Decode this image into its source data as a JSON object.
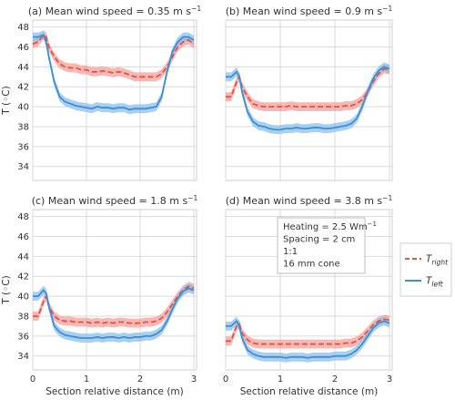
{
  "chart_data": [
    {
      "type": "line",
      "title": "(a) Mean wind speed = 0.35 m s",
      "title_sup": "−1",
      "xlabel": "",
      "ylabel": "T (◦C)",
      "xlim": [
        0,
        3.05
      ],
      "ylim": [
        32.6,
        48.7
      ],
      "yticks": [
        "34",
        "36",
        "38",
        "40",
        "42",
        "44",
        "46",
        "48"
      ],
      "xticks": [],
      "series": [
        {
          "key": "right",
          "x": [
            0,
            0.1,
            0.2,
            0.25,
            0.3,
            0.4,
            0.5,
            0.6,
            0.7,
            0.8,
            0.9,
            1.0,
            1.1,
            1.2,
            1.3,
            1.4,
            1.5,
            1.6,
            1.7,
            1.8,
            1.9,
            2.0,
            2.1,
            2.2,
            2.3,
            2.4,
            2.5,
            2.6,
            2.7,
            2.8,
            2.9,
            3.0
          ],
          "y": [
            46.3,
            46.5,
            47.2,
            47.0,
            46.0,
            45.0,
            44.3,
            44.0,
            43.9,
            43.9,
            43.7,
            43.7,
            43.5,
            43.5,
            43.6,
            43.5,
            43.4,
            43.5,
            43.4,
            43.2,
            43.0,
            43.0,
            43.0,
            43.0,
            43.0,
            43.3,
            44.0,
            45.0,
            46.0,
            46.5,
            46.7,
            46.3
          ],
          "band": 0.45
        },
        {
          "key": "left",
          "x": [
            0,
            0.1,
            0.2,
            0.25,
            0.3,
            0.4,
            0.5,
            0.6,
            0.7,
            0.8,
            0.9,
            1.0,
            1.1,
            1.2,
            1.3,
            1.4,
            1.5,
            1.6,
            1.7,
            1.8,
            1.9,
            2.0,
            2.1,
            2.2,
            2.3,
            2.4,
            2.5,
            2.6,
            2.7,
            2.8,
            2.9,
            3.0
          ],
          "y": [
            47.0,
            47.0,
            47.2,
            46.5,
            45.0,
            42.5,
            41.0,
            40.5,
            40.3,
            40.1,
            40.0,
            39.9,
            39.8,
            40.0,
            39.9,
            39.9,
            39.8,
            39.9,
            39.9,
            39.7,
            39.8,
            39.8,
            39.8,
            39.9,
            40.0,
            41.0,
            43.5,
            45.5,
            46.5,
            47.0,
            47.0,
            46.7
          ],
          "band": 0.45
        }
      ]
    },
    {
      "type": "line",
      "title": "(b) Mean wind speed = 0.9 m s",
      "title_sup": "−1",
      "xlabel": "",
      "ylabel": "",
      "xlim": [
        0,
        3.05
      ],
      "ylim": [
        32.6,
        48.7
      ],
      "yticks": [],
      "xticks": [],
      "series": [
        {
          "key": "right",
          "x": [
            0,
            0.1,
            0.2,
            0.25,
            0.3,
            0.4,
            0.5,
            0.6,
            0.7,
            0.8,
            0.9,
            1.0,
            1.1,
            1.2,
            1.3,
            1.4,
            1.5,
            1.6,
            1.7,
            1.8,
            1.9,
            2.0,
            2.1,
            2.2,
            2.3,
            2.4,
            2.5,
            2.6,
            2.7,
            2.8,
            2.9,
            3.0
          ],
          "y": [
            41.0,
            41.0,
            42.5,
            43.0,
            42.0,
            41.0,
            40.3,
            40.1,
            40.0,
            40.0,
            40.0,
            40.0,
            40.0,
            40.1,
            40.0,
            40.0,
            40.0,
            40.0,
            40.0,
            40.0,
            40.0,
            40.0,
            40.0,
            40.1,
            40.1,
            40.3,
            40.7,
            41.5,
            42.5,
            43.3,
            43.8,
            43.7
          ],
          "band": 0.45
        },
        {
          "key": "left",
          "x": [
            0,
            0.1,
            0.2,
            0.25,
            0.3,
            0.4,
            0.5,
            0.6,
            0.7,
            0.8,
            0.9,
            1.0,
            1.1,
            1.2,
            1.3,
            1.4,
            1.5,
            1.6,
            1.7,
            1.8,
            1.9,
            2.0,
            2.1,
            2.2,
            2.3,
            2.4,
            2.5,
            2.6,
            2.7,
            2.8,
            2.9,
            3.0
          ],
          "y": [
            43.0,
            43.0,
            43.5,
            43.0,
            41.5,
            39.5,
            38.5,
            38.1,
            38.0,
            37.8,
            37.7,
            37.7,
            37.8,
            37.8,
            37.9,
            37.8,
            37.8,
            37.9,
            37.9,
            37.8,
            37.8,
            37.9,
            38.0,
            38.1,
            38.3,
            38.8,
            40.0,
            41.5,
            42.8,
            43.6,
            44.0,
            43.8
          ],
          "band": 0.45
        }
      ]
    },
    {
      "type": "line",
      "title": "(c) Mean wind speed = 1.8 m s",
      "title_sup": "−1",
      "xlabel": "Section relative distance (m)",
      "ylabel": "T (◦C)",
      "xlim": [
        0,
        3.05
      ],
      "ylim": [
        32.6,
        48.7
      ],
      "yticks": [
        "34",
        "36",
        "38",
        "40",
        "42",
        "44",
        "46",
        "48"
      ],
      "xticks": [
        "0",
        "1",
        "2",
        "3"
      ],
      "series": [
        {
          "key": "right",
          "x": [
            0,
            0.1,
            0.2,
            0.25,
            0.3,
            0.4,
            0.5,
            0.6,
            0.7,
            0.8,
            0.9,
            1.0,
            1.1,
            1.2,
            1.3,
            1.4,
            1.5,
            1.6,
            1.7,
            1.8,
            1.9,
            2.0,
            2.1,
            2.2,
            2.3,
            2.4,
            2.5,
            2.6,
            2.7,
            2.8,
            2.9,
            3.0
          ],
          "y": [
            38.0,
            38.0,
            39.5,
            40.0,
            39.0,
            38.0,
            37.6,
            37.5,
            37.5,
            37.4,
            37.4,
            37.4,
            37.3,
            37.4,
            37.3,
            37.4,
            37.3,
            37.4,
            37.4,
            37.3,
            37.3,
            37.3,
            37.4,
            37.4,
            37.5,
            37.8,
            38.4,
            39.2,
            40.0,
            40.6,
            41.0,
            40.8
          ],
          "band": 0.45
        },
        {
          "key": "left",
          "x": [
            0,
            0.1,
            0.2,
            0.25,
            0.3,
            0.4,
            0.5,
            0.6,
            0.7,
            0.8,
            0.9,
            1.0,
            1.1,
            1.2,
            1.3,
            1.4,
            1.5,
            1.6,
            1.7,
            1.8,
            1.9,
            2.0,
            2.1,
            2.2,
            2.3,
            2.4,
            2.5,
            2.6,
            2.7,
            2.8,
            2.9,
            3.0
          ],
          "y": [
            40.0,
            40.0,
            40.6,
            40.3,
            39.0,
            37.0,
            36.4,
            36.1,
            36.0,
            35.9,
            35.8,
            35.8,
            35.8,
            35.9,
            35.8,
            35.9,
            35.9,
            35.8,
            35.9,
            35.8,
            35.9,
            35.9,
            36.0,
            36.0,
            36.2,
            36.6,
            37.5,
            38.7,
            39.8,
            40.5,
            40.8,
            40.6
          ],
          "band": 0.45
        }
      ]
    },
    {
      "type": "line",
      "title": "(d) Mean wind speed = 3.8 m s",
      "title_sup": "−1",
      "xlabel": "Section relative distance (m)",
      "ylabel": "",
      "xlim": [
        0,
        3.05
      ],
      "ylim": [
        32.6,
        48.7
      ],
      "yticks": [],
      "xticks": [
        "0",
        "1",
        "2",
        "3"
      ],
      "series": [
        {
          "key": "right",
          "x": [
            0,
            0.1,
            0.2,
            0.25,
            0.3,
            0.4,
            0.5,
            0.6,
            0.7,
            0.8,
            0.9,
            1.0,
            1.1,
            1.2,
            1.3,
            1.4,
            1.5,
            1.6,
            1.7,
            1.8,
            1.9,
            2.0,
            2.1,
            2.2,
            2.3,
            2.4,
            2.5,
            2.6,
            2.7,
            2.8,
            2.9,
            3.0
          ],
          "y": [
            35.5,
            35.5,
            37.0,
            37.2,
            36.3,
            35.6,
            35.3,
            35.2,
            35.2,
            35.2,
            35.2,
            35.2,
            35.2,
            35.2,
            35.2,
            35.2,
            35.2,
            35.2,
            35.2,
            35.2,
            35.2,
            35.2,
            35.2,
            35.3,
            35.3,
            35.5,
            35.9,
            36.5,
            37.1,
            37.5,
            37.7,
            37.6
          ],
          "band": 0.45
        },
        {
          "key": "left",
          "x": [
            0,
            0.1,
            0.2,
            0.25,
            0.3,
            0.4,
            0.5,
            0.6,
            0.7,
            0.8,
            0.9,
            1.0,
            1.1,
            1.2,
            1.3,
            1.4,
            1.5,
            1.6,
            1.7,
            1.8,
            1.9,
            2.0,
            2.1,
            2.2,
            2.3,
            2.4,
            2.5,
            2.6,
            2.7,
            2.8,
            2.9,
            3.0
          ],
          "y": [
            37.0,
            37.0,
            37.5,
            37.0,
            35.8,
            34.6,
            34.2,
            34.0,
            33.9,
            33.9,
            33.9,
            33.9,
            33.8,
            33.9,
            33.9,
            33.9,
            33.8,
            33.9,
            33.9,
            33.9,
            33.9,
            34.0,
            34.0,
            34.0,
            34.2,
            34.6,
            35.2,
            36.0,
            36.8,
            37.3,
            37.5,
            37.3
          ],
          "band": 0.45
        }
      ],
      "annotation": [
        "Heating = 2.5 Wm",
        "Spacing = 2 cm",
        "1:1",
        "16 mm cone"
      ],
      "annotation_sup": "−1"
    }
  ],
  "legend": {
    "placement": "right",
    "items": [
      {
        "key": "right",
        "label": "T",
        "sub": "right",
        "style": "dashed"
      },
      {
        "key": "left",
        "label": "T",
        "sub": "left",
        "style": "solid"
      }
    ]
  },
  "colors": {
    "right_line": "#e8514a",
    "right_band": "#f1a09a",
    "left_line": "#3c8fd6",
    "left_band": "#8fc0ea",
    "grid": "#d9d9d9",
    "frame": "#cfcfcf"
  }
}
